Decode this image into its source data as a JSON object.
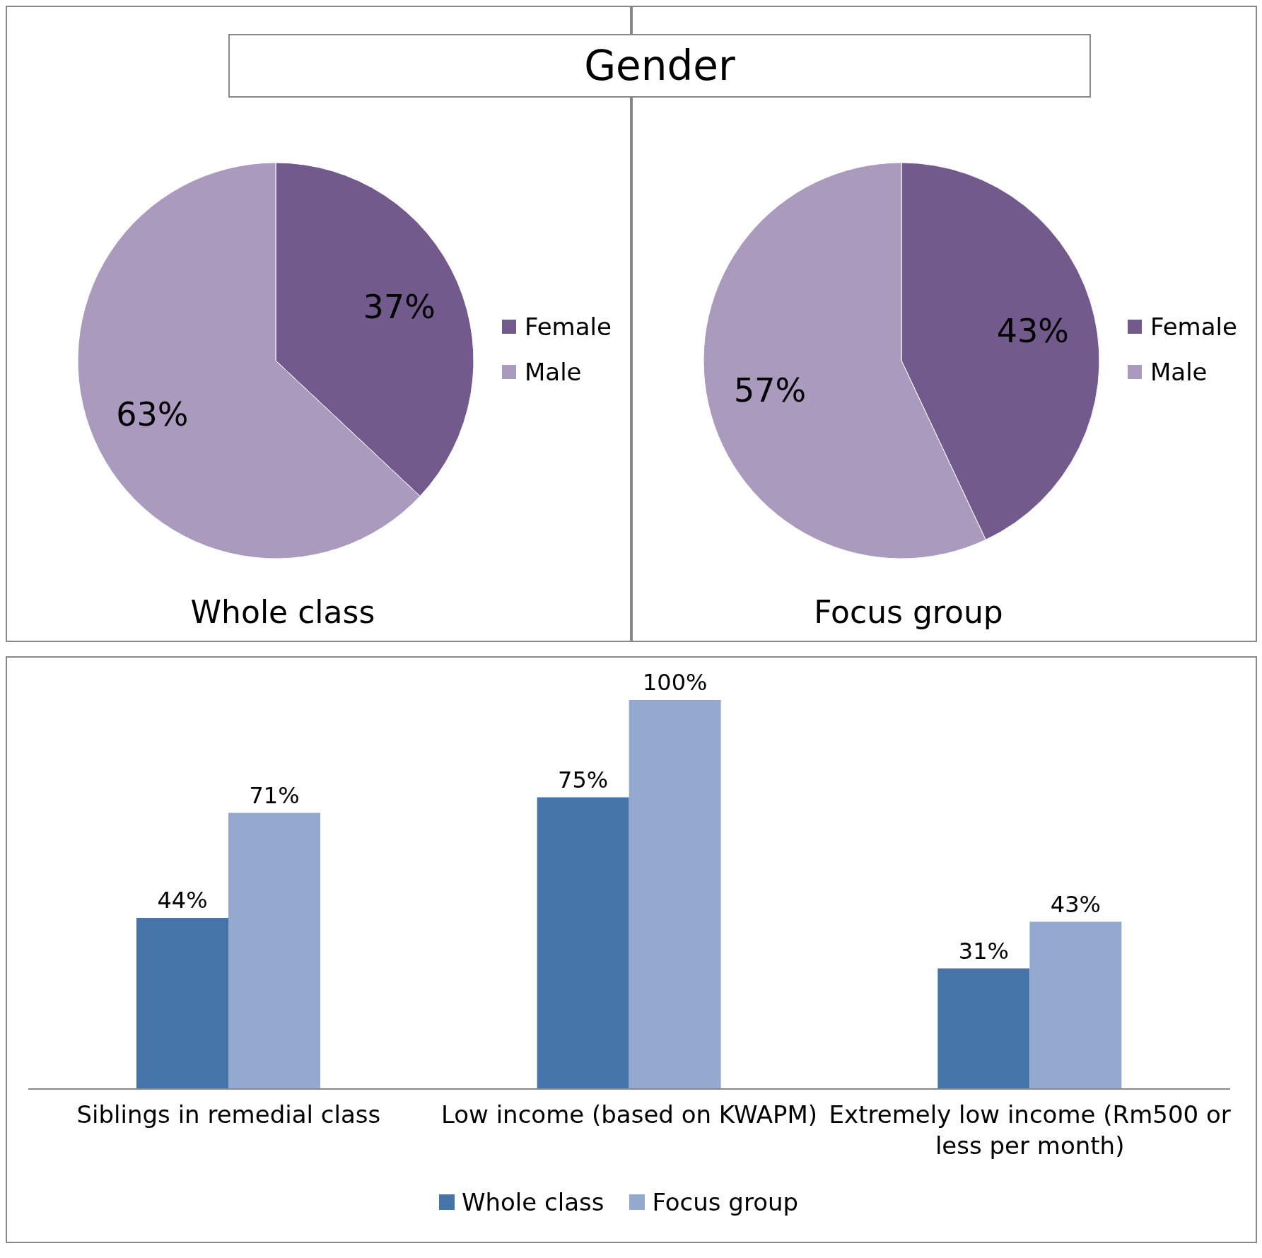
{
  "chart_data": [
    {
      "type": "pie",
      "title": "Gender",
      "subtitle": "Whole class",
      "categories": [
        "Female",
        "Male"
      ],
      "values": [
        37,
        63
      ],
      "value_labels": [
        "37%",
        "63%"
      ],
      "colors": [
        "#725a8d",
        "#aa9bbe"
      ],
      "legend": "right"
    },
    {
      "type": "pie",
      "subtitle": "Focus group",
      "categories": [
        "Female",
        "Male"
      ],
      "values": [
        43,
        57
      ],
      "value_labels": [
        "43%",
        "57%"
      ],
      "colors": [
        "#725a8d",
        "#aa9bbe"
      ],
      "legend": "right"
    },
    {
      "type": "bar",
      "categories": [
        "Siblings in remedial class",
        "Low income (based on KWAPM)",
        "Extremely low income (Rm500 or less per month)"
      ],
      "series": [
        {
          "name": "Whole class",
          "color": "#4674a8",
          "values": [
            44,
            75,
            31
          ],
          "value_labels": [
            "44%",
            "75%",
            "31%"
          ]
        },
        {
          "name": "Focus group",
          "color": "#95a9d0",
          "values": [
            71,
            100,
            43
          ],
          "value_labels": [
            "71%",
            "100%",
            "43%"
          ]
        }
      ],
      "legend": "bottom"
    }
  ]
}
